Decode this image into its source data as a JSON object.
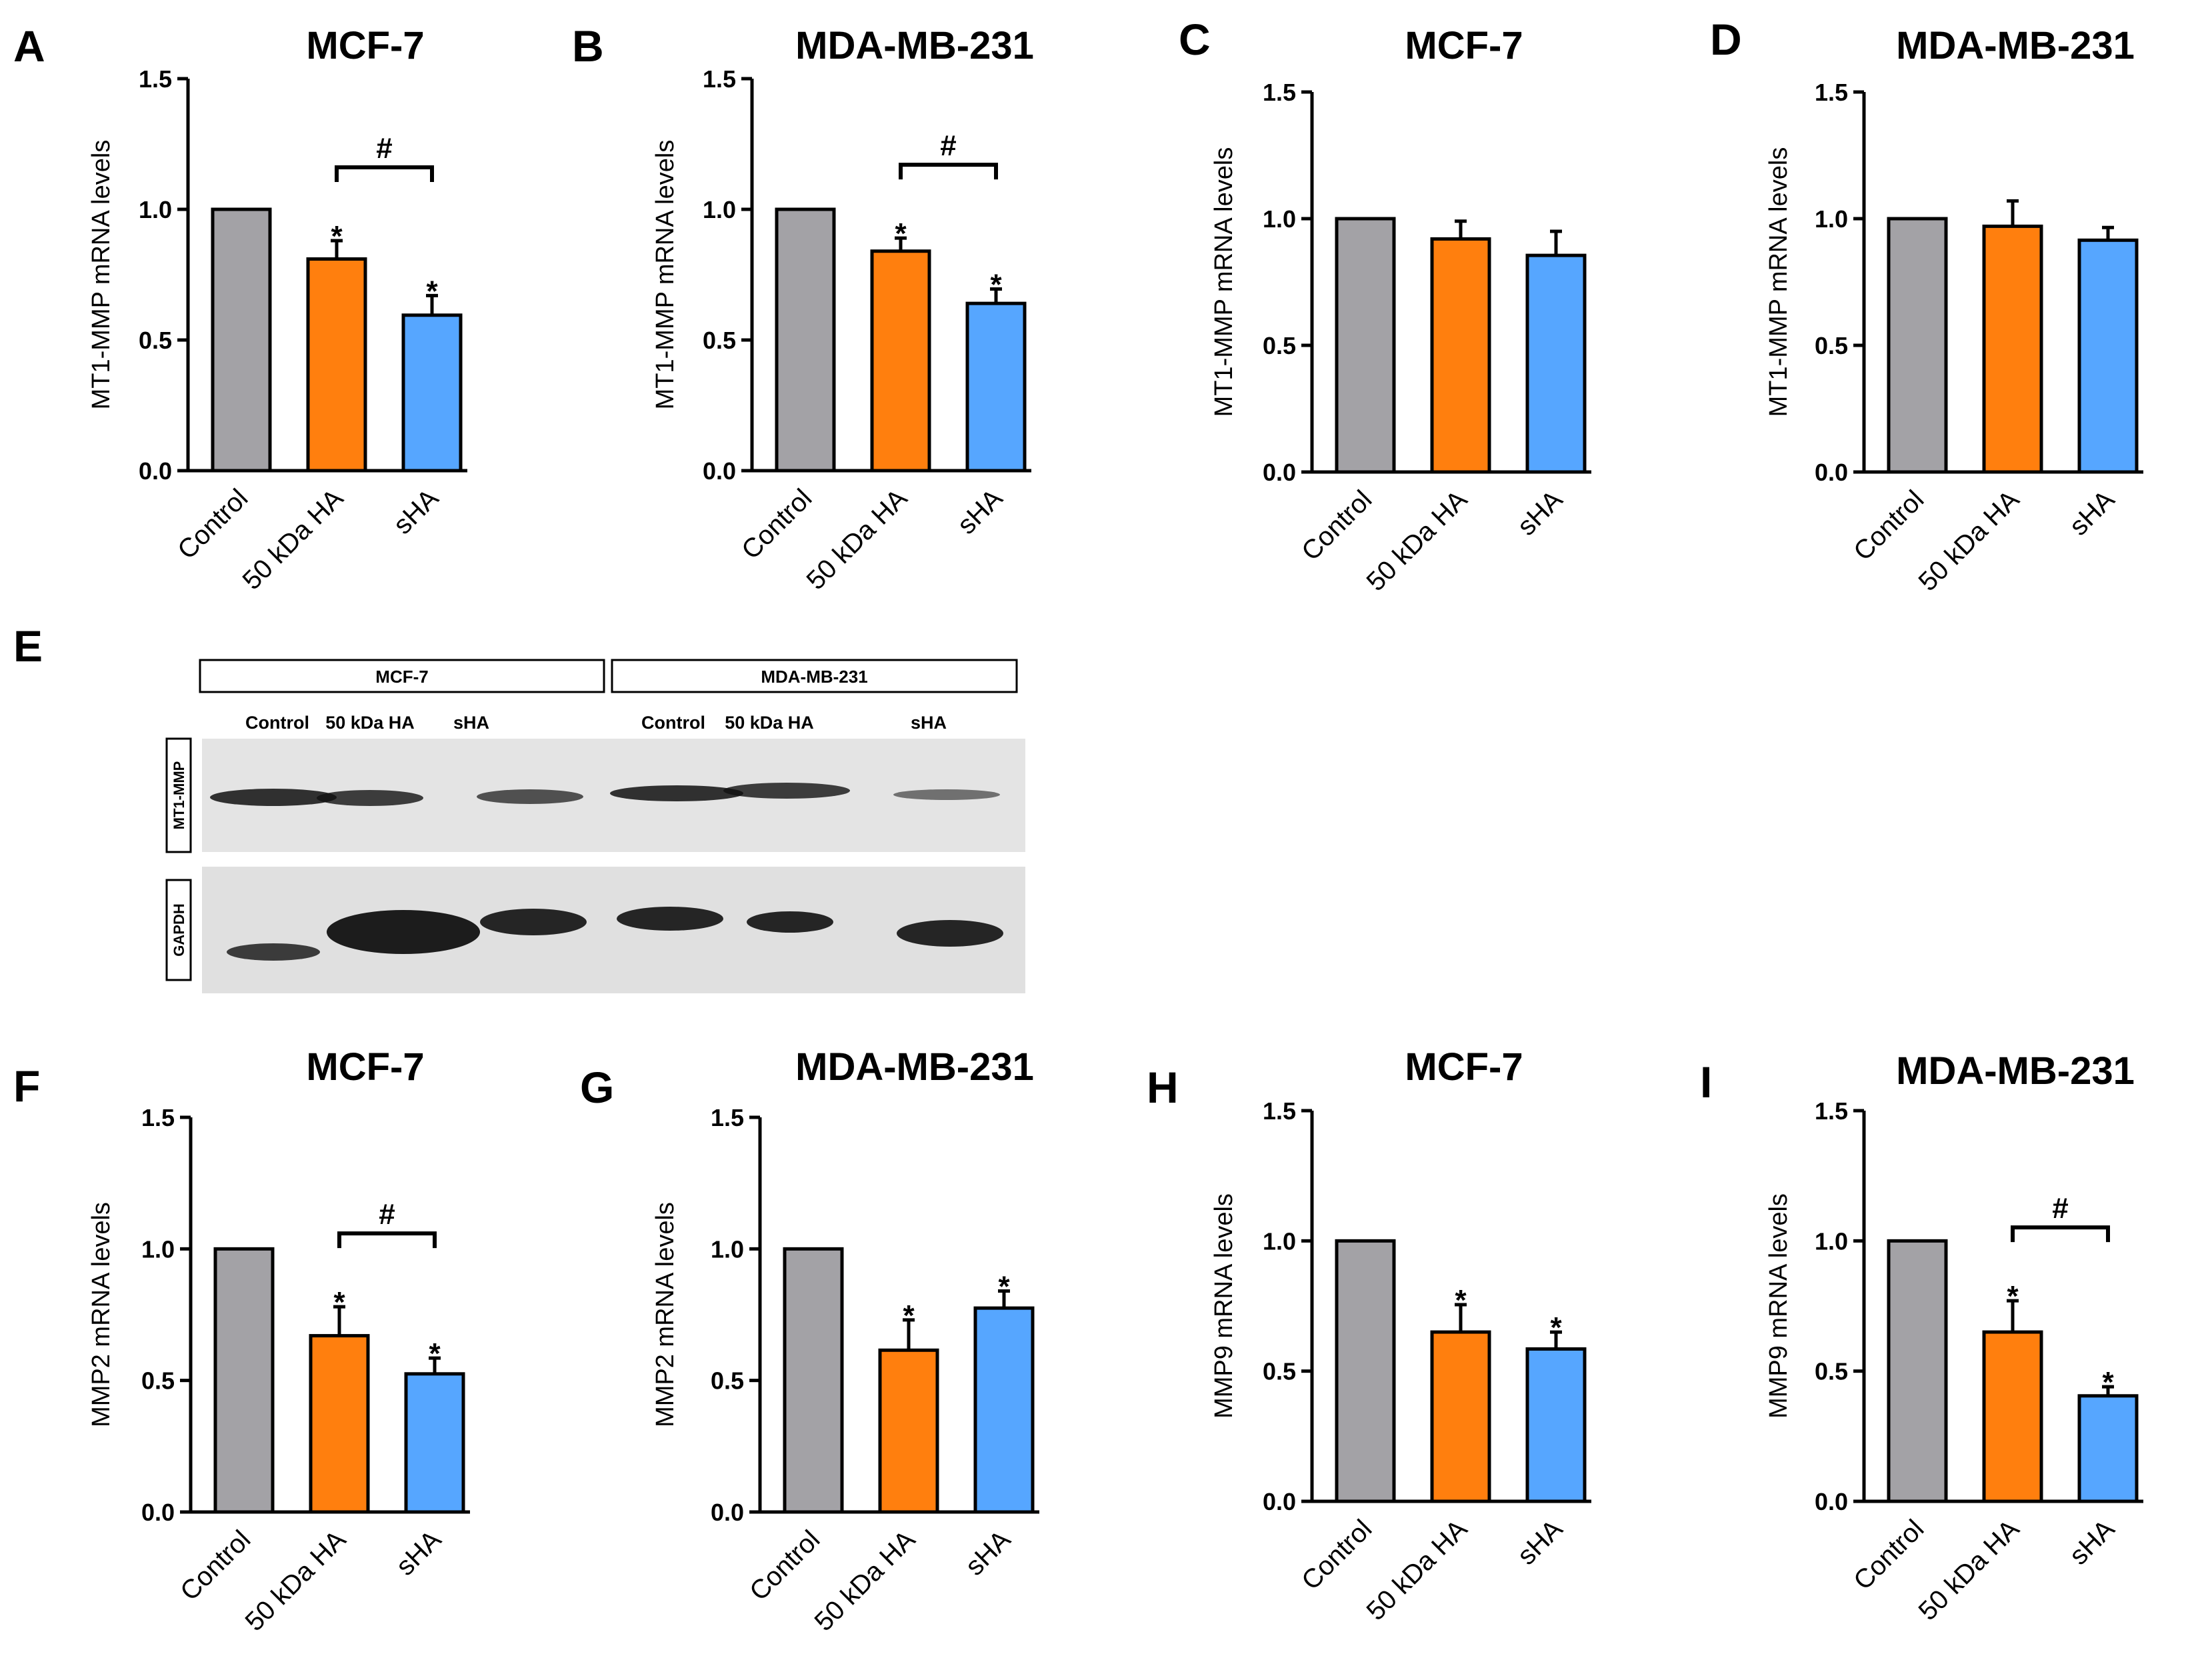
{
  "colors": {
    "control": "#a3a2a6",
    "ha50": "#ff7f0e",
    "sha": "#56a6ff",
    "axis": "#000000"
  },
  "chart_data": [
    {
      "panel": "A",
      "type": "bar",
      "title": "MCF-7",
      "ylabel": "MT1-MMP mRNA levels",
      "categories": [
        "Control",
        "50 kDa HA",
        "sHA"
      ],
      "values": [
        1.0,
        0.81,
        0.595
      ],
      "errors": [
        0,
        0.07,
        0.075
      ],
      "sig": [
        "",
        "*",
        "*"
      ],
      "bracket": "#",
      "ylim": [
        0,
        1.5
      ],
      "yticks": [
        "0.0",
        "0.5",
        "1.0",
        "1.5"
      ]
    },
    {
      "panel": "B",
      "type": "bar",
      "title": "MDA-MB-231",
      "ylabel": "MT1-MMP mRNA levels",
      "categories": [
        "Control",
        "50 kDa HA",
        "sHA"
      ],
      "values": [
        1.0,
        0.84,
        0.64
      ],
      "errors": [
        0,
        0.05,
        0.055
      ],
      "sig": [
        "",
        "*",
        "*"
      ],
      "bracket": "#",
      "ylim": [
        0,
        1.5
      ],
      "yticks": [
        "0.0",
        "0.5",
        "1.0",
        "1.5"
      ]
    },
    {
      "panel": "C",
      "type": "bar",
      "title": "MCF-7",
      "ylabel": "MT1-MMP mRNA levels",
      "categories": [
        "Control",
        "50 kDa HA",
        "sHA"
      ],
      "values": [
        1.0,
        0.92,
        0.855
      ],
      "errors": [
        0,
        0.07,
        0.095
      ],
      "sig": [
        "",
        "",
        ""
      ],
      "bracket": "",
      "ylim": [
        0,
        1.5
      ],
      "yticks": [
        "0.0",
        "0.5",
        "1.0",
        "1.5"
      ]
    },
    {
      "panel": "D",
      "type": "bar",
      "title": "MDA-MB-231",
      "ylabel": "MT1-MMP mRNA levels",
      "categories": [
        "Control",
        "50 kDa HA",
        "sHA"
      ],
      "values": [
        1.0,
        0.97,
        0.915
      ],
      "errors": [
        0,
        0.1,
        0.05
      ],
      "sig": [
        "",
        "",
        ""
      ],
      "bracket": "",
      "ylim": [
        0,
        1.5
      ],
      "yticks": [
        "0.0",
        "0.5",
        "1.0",
        "1.5"
      ]
    },
    {
      "panel": "F",
      "type": "bar",
      "title": "MCF-7",
      "ylabel": "MMP2 mRNA levels",
      "categories": [
        "Control",
        "50 kDa HA",
        "sHA"
      ],
      "values": [
        1.0,
        0.67,
        0.525
      ],
      "errors": [
        0,
        0.11,
        0.06
      ],
      "sig": [
        "",
        "*",
        "*"
      ],
      "bracket": "#",
      "ylim": [
        0,
        1.5
      ],
      "yticks": [
        "0.0",
        "0.5",
        "1.0",
        "1.5"
      ]
    },
    {
      "panel": "G",
      "type": "bar",
      "title": "MDA-MB-231",
      "ylabel": "MMP2 mRNA levels",
      "categories": [
        "Control",
        "50 kDa HA",
        "sHA"
      ],
      "values": [
        1.0,
        0.615,
        0.775
      ],
      "errors": [
        0,
        0.115,
        0.065
      ],
      "sig": [
        "",
        "*",
        "*"
      ],
      "bracket": "",
      "ylim": [
        0,
        1.5
      ],
      "yticks": [
        "0.0",
        "0.5",
        "1.0",
        "1.5"
      ]
    },
    {
      "panel": "H",
      "type": "bar",
      "title": "MCF-7",
      "ylabel": "MMP9 mRNA levels",
      "categories": [
        "Control",
        "50 kDa HA",
        "sHA"
      ],
      "values": [
        1.0,
        0.65,
        0.585
      ],
      "errors": [
        0,
        0.105,
        0.065
      ],
      "sig": [
        "",
        "*",
        "*"
      ],
      "bracket": "",
      "ylim": [
        0,
        1.5
      ],
      "yticks": [
        "0.0",
        "0.5",
        "1.0",
        "1.5"
      ]
    },
    {
      "panel": "I",
      "type": "bar",
      "title": "MDA-MB-231",
      "ylabel": "MMP9 mRNA levels",
      "categories": [
        "Control",
        "50 kDa HA",
        "sHA"
      ],
      "values": [
        1.0,
        0.65,
        0.405
      ],
      "errors": [
        0,
        0.12,
        0.035
      ],
      "sig": [
        "",
        "*",
        "*"
      ],
      "bracket": "#",
      "ylim": [
        0,
        1.5
      ],
      "yticks": [
        "0.0",
        "0.5",
        "1.0",
        "1.5"
      ]
    }
  ],
  "blot": {
    "panel": "E",
    "groups": [
      "MCF-7",
      "MDA-MB-231"
    ],
    "columns": [
      "Control",
      "50 kDa HA",
      "sHA",
      "Control",
      "50 kDa HA",
      "sHA"
    ],
    "rows": [
      "MT1-MMP",
      "GAPDH"
    ]
  }
}
